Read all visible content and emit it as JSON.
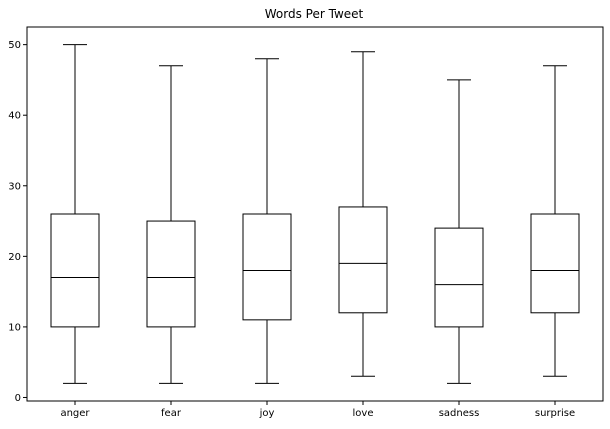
{
  "chart_data": {
    "type": "box",
    "title": "Words Per Tweet",
    "xlabel": "",
    "ylabel": "",
    "ylim": [
      -0.5,
      52.5
    ],
    "yticks": [
      0,
      10,
      20,
      30,
      40,
      50
    ],
    "grid": false,
    "categories": [
      "anger",
      "fear",
      "joy",
      "love",
      "sadness",
      "surprise"
    ],
    "boxes": [
      {
        "category": "anger",
        "whisker_low": 2,
        "q1": 10,
        "median": 17,
        "q3": 26,
        "whisker_high": 50
      },
      {
        "category": "fear",
        "whisker_low": 2,
        "q1": 10,
        "median": 17,
        "q3": 25,
        "whisker_high": 47
      },
      {
        "category": "joy",
        "whisker_low": 2,
        "q1": 11,
        "median": 18,
        "q3": 26,
        "whisker_high": 48
      },
      {
        "category": "love",
        "whisker_low": 3,
        "q1": 12,
        "median": 19,
        "q3": 27,
        "whisker_high": 49
      },
      {
        "category": "sadness",
        "whisker_low": 2,
        "q1": 10,
        "median": 16,
        "q3": 24,
        "whisker_high": 45
      },
      {
        "category": "surprise",
        "whisker_low": 3,
        "q1": 12,
        "median": 18,
        "q3": 26,
        "whisker_high": 47
      }
    ],
    "colors": {
      "box": "#000000",
      "median": "#000000",
      "axis": "#000000",
      "background": "#ffffff"
    }
  }
}
